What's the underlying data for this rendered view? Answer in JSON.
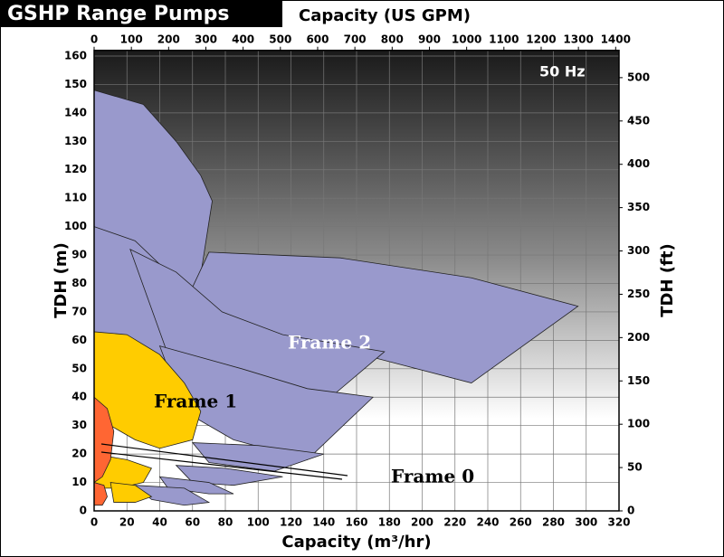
{
  "chart_data": {
    "type": "area",
    "title": "GSHP Range Pumps",
    "x2_label": "Capacity (US GPM)",
    "x_label": "Capacity (m³/hr)",
    "y_label": "TDH (m)",
    "y2_label": "TDH (ft)",
    "annotation": "50 Hz",
    "xlim": [
      0,
      320
    ],
    "xticks": [
      0,
      20,
      40,
      60,
      80,
      100,
      120,
      140,
      160,
      180,
      200,
      220,
      240,
      260,
      280,
      300,
      320
    ],
    "x2lim": [
      0,
      1409
    ],
    "x2ticks": [
      0,
      100,
      200,
      300,
      400,
      500,
      600,
      700,
      800,
      900,
      1000,
      1100,
      1200,
      1300,
      1400
    ],
    "ylim": [
      0,
      162
    ],
    "yticks": [
      0,
      10,
      20,
      30,
      40,
      50,
      60,
      70,
      80,
      90,
      100,
      110,
      120,
      130,
      140,
      150,
      160
    ],
    "y2lim": [
      0,
      531.5
    ],
    "y2ticks": [
      0,
      50,
      100,
      150,
      200,
      250,
      300,
      350,
      400,
      450,
      500
    ],
    "grid": true,
    "series": [
      {
        "name": "Frame 2",
        "color": "#9999cc",
        "regions": [
          {
            "x": [
              0,
              30,
              50,
              65,
              72,
              62,
              45,
              20,
              0
            ],
            "y": [
              148,
              143,
              130,
              118,
              109,
              72,
              78,
              90,
              100
            ]
          },
          {
            "x": [
              70,
              150,
              230,
              295,
              230,
              150,
              80,
              48
            ],
            "y": [
              91,
              89,
              82,
              72,
              45,
              57,
              62,
              64
            ]
          },
          {
            "x": [
              0,
              25,
              45,
              70,
              78,
              68,
              42,
              20,
              0
            ],
            "y": [
              100,
              95,
              84,
              72,
              64,
              58,
              52,
              58,
              63
            ]
          },
          {
            "x": [
              22,
              50,
              78,
              115,
              177,
              130,
              65,
              45
            ],
            "y": [
              92,
              84,
              70,
              62,
              56,
              33,
              48,
              55
            ]
          },
          {
            "x": [
              40,
              90,
              130,
              170,
              130,
              85,
              55
            ],
            "y": [
              58,
              50,
              43,
              40,
              18,
              25,
              35
            ]
          },
          {
            "x": [
              60,
              100,
              140,
              110,
              70
            ],
            "y": [
              24,
              23,
              20,
              14,
              17
            ]
          },
          {
            "x": [
              50,
              80,
              115,
              85,
              60
            ],
            "y": [
              16,
              15,
              12,
              9,
              10
            ]
          },
          {
            "x": [
              40,
              70,
              85,
              70,
              45
            ],
            "y": [
              12,
              10,
              6,
              6,
              8
            ]
          },
          {
            "x": [
              25,
              55,
              70,
              55,
              35
            ],
            "y": [
              9,
              8,
              3,
              2,
              4
            ]
          }
        ]
      },
      {
        "name": "Frame 1",
        "color": "#ffcc00",
        "regions": [
          {
            "x": [
              0,
              20,
              40,
              55,
              65,
              60,
              40,
              25,
              10,
              0
            ],
            "y": [
              63,
              62,
              55,
              45,
              35,
              25,
              22,
              25,
              30,
              35
            ]
          },
          {
            "x": [
              0,
              20,
              35,
              30,
              15,
              0
            ],
            "y": [
              20,
              18,
              15,
              10,
              8,
              8
            ]
          },
          {
            "x": [
              10,
              25,
              35,
              25,
              12
            ],
            "y": [
              10,
              9,
              5,
              3,
              3
            ]
          }
        ]
      },
      {
        "name": "Frame 0",
        "color": "#ff6633",
        "regions": [
          {
            "x": [
              0,
              8,
              12,
              10,
              5,
              0
            ],
            "y": [
              40,
              36,
              28,
              18,
              12,
              10
            ]
          },
          {
            "x": [
              0,
              6,
              8,
              5,
              0
            ],
            "y": [
              10,
              9,
              5,
              2,
              2
            ]
          }
        ]
      }
    ]
  }
}
